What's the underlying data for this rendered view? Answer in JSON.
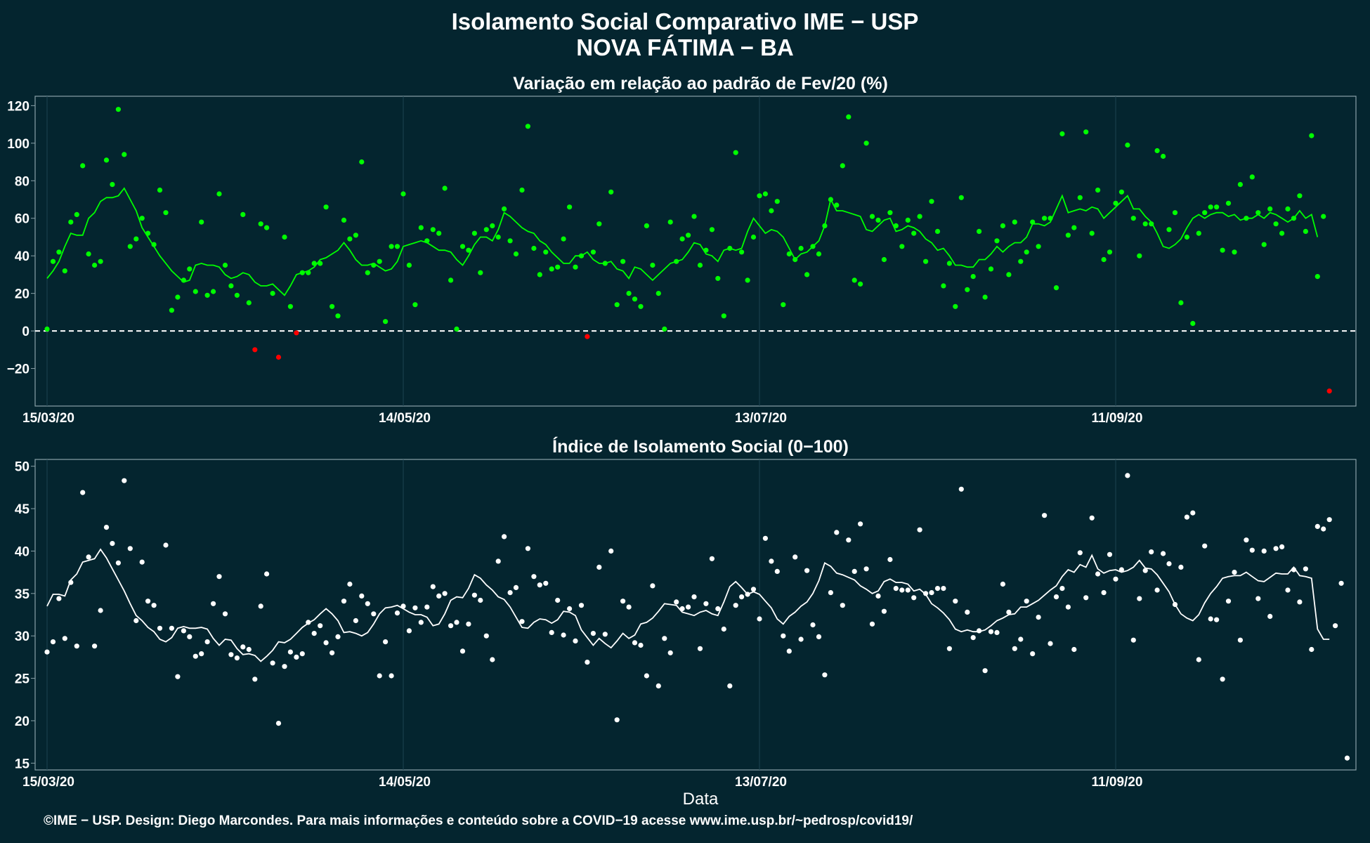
{
  "header": {
    "title": "Isolamento Social Comparativo IME − USP",
    "subtitle": "NOVA FÁTIMA − BA"
  },
  "footer": {
    "credits": "©IME − USP. Design: Diego Marcondes. Para mais informações e conteúdo sobre a COVID−19 acesse www.ime.usp.br/~pedrosp/covid19/"
  },
  "colors": {
    "background": "#04252f",
    "positive_points": "#00ff00",
    "negative_points": "#ff0000",
    "index_points": "#ffffff",
    "panel_border": "#8aa1a8",
    "grid": "#1d4450"
  },
  "chart_data": [
    {
      "type": "scatter",
      "title": "Variação em relação ao padrão de Fev/20 (%)",
      "xlabel": "",
      "ylabel": "",
      "x_start": "2020-03-15",
      "x_ticks": [
        "15/03/20",
        "14/05/20",
        "13/07/20",
        "11/09/20"
      ],
      "ylim": [
        -40,
        125
      ],
      "y_ticks": [
        -20,
        0,
        20,
        40,
        60,
        80,
        100,
        120
      ],
      "reference_line": 0,
      "grid": true,
      "series": [
        {
          "values": [
            1,
            37,
            42,
            32,
            58,
            62,
            88,
            41,
            35,
            37,
            91,
            78,
            118,
            94,
            45,
            49,
            60,
            52,
            46,
            75,
            63,
            11,
            18,
            27,
            33,
            21,
            58,
            19,
            21,
            73,
            35,
            24,
            19,
            62,
            15,
            -10,
            57,
            55,
            20,
            -14,
            50,
            13,
            -1,
            31,
            31,
            36,
            36,
            66,
            13,
            8,
            59,
            49,
            51,
            90,
            31,
            35,
            37,
            5,
            45,
            45,
            73,
            35,
            14,
            55,
            48,
            54,
            52,
            76,
            27,
            1,
            45,
            43,
            52,
            31,
            54,
            56,
            50,
            65,
            48,
            41,
            75,
            109,
            44,
            30,
            42,
            33,
            34,
            49,
            66,
            34,
            40,
            -3,
            42,
            57,
            36,
            74,
            14,
            37,
            20,
            17,
            13,
            56,
            35,
            20,
            1,
            58,
            37,
            49,
            51,
            61,
            35,
            43,
            54,
            28,
            8,
            44,
            95,
            42,
            27,
            50,
            72,
            73,
            64,
            69,
            14,
            41,
            38,
            44,
            30,
            45,
            41,
            56,
            70,
            67,
            88,
            114,
            27,
            25,
            100,
            61,
            59,
            38,
            63,
            56,
            45,
            59,
            52,
            61,
            37,
            69,
            53,
            24,
            36,
            13,
            71,
            22,
            29,
            53,
            18,
            33,
            48,
            56,
            30,
            58,
            37,
            42,
            58,
            45,
            60,
            60,
            23,
            105,
            51,
            55,
            71,
            106,
            52,
            75,
            38,
            42,
            68,
            74,
            99,
            60,
            40,
            57,
            57,
            96,
            93,
            54,
            63,
            15,
            50,
            4,
            52,
            63,
            66,
            66,
            43,
            68,
            42,
            78,
            60,
            82,
            63,
            46,
            65,
            57,
            52,
            65,
            60,
            72,
            53,
            104,
            29,
            61,
            -32
          ],
          "moving_average": [
            28,
            32,
            37,
            45,
            52,
            51,
            51,
            60,
            63,
            69,
            71,
            71,
            72,
            76,
            70,
            64,
            55,
            50,
            45,
            40,
            36,
            32,
            29,
            26,
            27,
            35,
            36,
            35,
            35,
            34,
            30,
            28,
            29,
            31,
            30,
            26,
            24,
            24,
            25,
            22,
            19,
            24,
            30,
            31,
            32,
            34,
            38,
            39,
            41,
            43,
            47,
            43,
            38,
            35,
            35,
            36,
            34,
            32,
            33,
            37,
            45,
            46,
            47,
            48,
            47,
            45,
            43,
            43,
            42,
            38,
            35,
            40,
            46,
            50,
            50,
            48,
            54,
            63,
            61,
            58,
            55,
            53,
            52,
            48,
            46,
            42,
            39,
            36,
            36,
            40,
            40,
            42,
            38,
            36,
            36,
            37,
            33,
            32,
            28,
            34,
            33,
            30,
            27,
            30,
            33,
            36,
            37,
            38,
            42,
            47,
            46,
            41,
            40,
            37,
            43,
            44,
            43,
            44,
            53,
            60,
            56,
            52,
            54,
            53,
            50,
            44,
            38,
            41,
            42,
            45,
            48,
            56,
            70,
            64,
            64,
            63,
            62,
            61,
            54,
            53,
            56,
            59,
            60,
            53,
            54,
            56,
            55,
            53,
            49,
            47,
            43,
            44,
            40,
            35,
            35,
            34,
            34,
            38,
            38,
            41,
            45,
            42,
            45,
            47,
            47,
            50,
            57,
            57,
            56,
            58,
            65,
            72,
            63,
            64,
            65,
            64,
            66,
            65,
            60,
            63,
            66,
            69,
            72,
            65,
            65,
            61,
            58,
            52,
            45,
            44,
            46,
            49,
            55,
            60,
            62,
            60,
            62,
            63,
            63,
            61,
            62,
            59,
            60,
            60,
            62,
            60,
            63,
            62,
            60,
            58,
            60,
            64,
            60,
            62,
            50
          ]
        }
      ]
    },
    {
      "type": "scatter",
      "title": "Índice de Isolamento Social (0−100)",
      "xlabel": "Data",
      "ylabel": "",
      "x_start": "2020-03-15",
      "x_ticks": [
        "15/03/20",
        "14/05/20",
        "13/07/20",
        "11/09/20"
      ],
      "ylim": [
        14.2,
        50.8
      ],
      "y_ticks": [
        15,
        20,
        25,
        30,
        35,
        40,
        45,
        50
      ],
      "grid": true,
      "series": [
        {
          "values": [
            28.1,
            29.3,
            34.4,
            29.7,
            36.3,
            28.8,
            46.9,
            39.3,
            28.8,
            33.0,
            42.8,
            40.9,
            38.6,
            48.3,
            40.3,
            31.8,
            38.7,
            34.1,
            33.6,
            30.9,
            40.7,
            30.9,
            25.2,
            30.6,
            29.9,
            27.6,
            27.9,
            29.3,
            33.8,
            37.0,
            32.6,
            27.8,
            27.4,
            28.7,
            28.4,
            24.9,
            33.5,
            37.3,
            26.8,
            19.7,
            26.4,
            28.1,
            27.5,
            27.9,
            31.6,
            30.3,
            31.2,
            29.2,
            28.0,
            29.9,
            34.1,
            36.1,
            31.8,
            34.7,
            33.8,
            32.6,
            25.3,
            29.3,
            25.3,
            32.7,
            33.5,
            30.6,
            33.3,
            31.6,
            33.4,
            35.8,
            34.7,
            35.0,
            31.2,
            31.6,
            28.2,
            31.4,
            34.8,
            34.2,
            30.0,
            27.2,
            38.8,
            41.7,
            35.1,
            35.7,
            31.7,
            40.3,
            37.0,
            36.0,
            36.2,
            30.4,
            34.2,
            30.1,
            33.2,
            29.4,
            33.6,
            26.9,
            30.3,
            38.1,
            30.2,
            40.0,
            20.1,
            34.1,
            33.4,
            29.2,
            28.9,
            25.3,
            35.9,
            24.1,
            29.7,
            28.0,
            34.0,
            33.2,
            33.4,
            34.6,
            28.5,
            33.8,
            39.1,
            33.2,
            30.8,
            24.1,
            33.6,
            34.6,
            34.9,
            35.5,
            32.0,
            41.5,
            38.8,
            37.6,
            30.0,
            28.2,
            39.3,
            29.6,
            37.7,
            31.3,
            29.9,
            25.4,
            35.1,
            42.2,
            33.6,
            41.3,
            37.6,
            43.2,
            37.9,
            31.4,
            34.7,
            32.9,
            39.0,
            35.6,
            35.4,
            35.4,
            34.5,
            42.5,
            35.0,
            35.1,
            35.6,
            35.6,
            28.5,
            34.1,
            47.3,
            32.8,
            29.8,
            30.6,
            25.9,
            30.5,
            30.4,
            36.1,
            32.8,
            28.5,
            29.6,
            34.1,
            27.9,
            32.2,
            44.2,
            29.1,
            34.6,
            35.6,
            33.4,
            28.4,
            39.8,
            34.5,
            43.9,
            37.3,
            35.1,
            39.6,
            36.7,
            37.8,
            48.9,
            29.5,
            34.4,
            37.7,
            39.9,
            35.4,
            39.7,
            38.5,
            33.7,
            38.1,
            44.0,
            44.5,
            27.2,
            40.6,
            32.0,
            31.9,
            24.9,
            34.1,
            37.5,
            29.5,
            41.3,
            40.1,
            34.4,
            40.0,
            32.3,
            40.3,
            40.5,
            35.4,
            37.8,
            34.0,
            37.9,
            28.4,
            42.9,
            42.6,
            43.7,
            31.2,
            36.2,
            15.6
          ],
          "moving_average": [
            33.5,
            34.9,
            34.9,
            34.7,
            36.6,
            37.3,
            38.7,
            38.9,
            39.1,
            40.2,
            39.2,
            37.9,
            36.6,
            35.3,
            33.8,
            32.4,
            31.8,
            31.0,
            30.5,
            29.6,
            29.3,
            29.8,
            30.9,
            31.1,
            30.9,
            30.9,
            31.0,
            30.8,
            29.7,
            28.9,
            29.6,
            29.5,
            28.5,
            27.8,
            27.9,
            27.7,
            27.0,
            27.6,
            28.3,
            29.3,
            29.2,
            29.6,
            30.3,
            31.0,
            31.5,
            31.9,
            32.6,
            33.2,
            32.6,
            31.8,
            30.4,
            30.5,
            30.3,
            30.0,
            30.4,
            31.4,
            32.6,
            33.3,
            33.4,
            33.6,
            33.2,
            32.8,
            32.5,
            32.5,
            32.2,
            31.2,
            31.4,
            32.6,
            34.2,
            34.6,
            34.5,
            35.6,
            37.2,
            36.8,
            36.0,
            35.4,
            34.6,
            34.3,
            33.4,
            32.2,
            31.0,
            30.9,
            31.6,
            32.0,
            31.9,
            31.5,
            31.9,
            32.9,
            32.8,
            32.4,
            30.7,
            29.8,
            28.9,
            29.7,
            29.1,
            28.6,
            29.4,
            30.3,
            29.7,
            30.1,
            31.4,
            31.6,
            32.1,
            32.9,
            33.8,
            33.7,
            33.6,
            32.8,
            32.6,
            32.4,
            32.8,
            33.0,
            32.6,
            32.4,
            34.0,
            35.8,
            36.4,
            35.7,
            34.9,
            35.2,
            34.9,
            34.1,
            33.3,
            32.0,
            31.4,
            32.3,
            32.8,
            33.5,
            34.0,
            35.0,
            36.5,
            38.6,
            38.2,
            37.4,
            37.2,
            36.9,
            36.6,
            35.9,
            35.5,
            35.0,
            35.3,
            36.4,
            36.7,
            36.3,
            36.3,
            36.1,
            35.3,
            35.5,
            34.9,
            33.8,
            33.3,
            32.7,
            31.9,
            30.8,
            30.5,
            30.7,
            30.5,
            30.5,
            30.7,
            31.2,
            31.8,
            32.1,
            32.5,
            32.6,
            33.4,
            33.4,
            33.8,
            34.2,
            34.8,
            35.4,
            35.9,
            37.0,
            37.8,
            37.5,
            38.4,
            38.1,
            39.5,
            37.9,
            37.4,
            37.7,
            37.8,
            37.5,
            37.7,
            38.1,
            38.9,
            38.0,
            37.9,
            37.2,
            36.2,
            35.2,
            33.7,
            32.6,
            32.1,
            31.8,
            32.5,
            33.9,
            35.0,
            35.8,
            36.8,
            37.0,
            37.1,
            37.1,
            37.5,
            37.0,
            36.5,
            36.4,
            36.9,
            37.4,
            37.3,
            37.3,
            38.1,
            37.1,
            37.0,
            36.8,
            30.8,
            29.6,
            29.6
          ]
        }
      ]
    }
  ]
}
